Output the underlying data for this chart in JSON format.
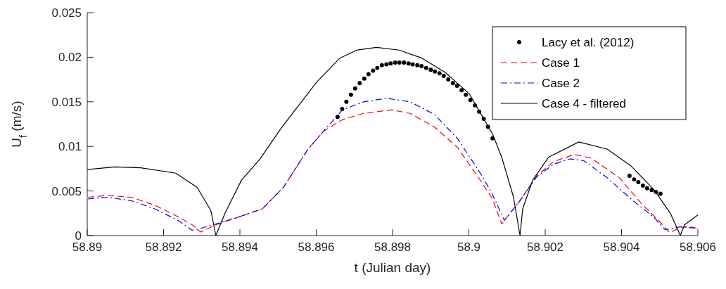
{
  "chart_data": {
    "type": "line",
    "xlabel": "t (Julian day)",
    "ylabel": "U$_{f}$ (m/s)",
    "xlim": [
      58.89,
      58.906
    ],
    "xticks": [
      58.89,
      58.892,
      58.894,
      58.896,
      58.898,
      58.9,
      58.902,
      58.904,
      58.906
    ],
    "ylim": [
      0,
      0.025
    ],
    "yticks": [
      0,
      0.005,
      0.01,
      0.015,
      0.02,
      0.025
    ],
    "grid": false,
    "legend": "top right",
    "series": [
      {
        "name": "Lacy et al. (2012)",
        "type": "scatter",
        "marker": "circle",
        "color": "#000000",
        "x": [
          58.89656,
          58.89668,
          58.89679,
          58.89691,
          58.89702,
          58.89714,
          58.89726,
          58.89737,
          58.89749,
          58.8976,
          58.89772,
          58.89784,
          58.89795,
          58.89807,
          58.89818,
          58.8983,
          58.89842,
          58.89853,
          58.89865,
          58.89876,
          58.89888,
          58.899,
          58.89911,
          58.89923,
          58.89934,
          58.89946,
          58.89958,
          58.89969,
          58.89981,
          58.89992,
          58.90004,
          58.90016,
          58.90027,
          58.90039,
          58.9005,
          58.90062,
          58.90421,
          58.90433,
          58.90444,
          58.90456,
          58.90467,
          58.90479,
          58.9049,
          58.90502
        ],
        "values": [
          0.0133,
          0.0142,
          0.015,
          0.0158,
          0.0165,
          0.0171,
          0.0176,
          0.0181,
          0.0185,
          0.0188,
          0.0191,
          0.0192,
          0.0193,
          0.0194,
          0.0194,
          0.0194,
          0.0193,
          0.0192,
          0.0191,
          0.019,
          0.0188,
          0.0186,
          0.0184,
          0.0182,
          0.0179,
          0.0175,
          0.0171,
          0.0168,
          0.0163,
          0.0158,
          0.0152,
          0.0146,
          0.0139,
          0.0131,
          0.0122,
          0.0109,
          0.0067,
          0.0063,
          0.006,
          0.0056,
          0.0053,
          0.0051,
          0.0049,
          0.0047
        ]
      },
      {
        "name": "Case 1",
        "color": "#ff0000",
        "line_style": "dashed",
        "x": [
          58.89002,
          58.89053,
          58.89116,
          58.89177,
          58.89238,
          58.89275,
          58.89297,
          58.89312,
          58.89337,
          58.89398,
          58.89459,
          58.89514,
          58.89577,
          58.89619,
          58.89669,
          58.89724,
          58.89798,
          58.89846,
          58.89909,
          58.8997,
          58.9003,
          58.90062,
          58.90086,
          58.90132,
          58.90178,
          58.90222,
          58.90277,
          58.9032,
          58.90394,
          58.90454,
          58.90504,
          58.90526,
          58.90554,
          58.90578,
          58.906
        ],
        "values": [
          0.0043,
          0.0045,
          0.0043,
          0.0034,
          0.0021,
          0.0012,
          0.0004,
          0.0007,
          0.0012,
          0.0021,
          0.003,
          0.0054,
          0.0096,
          0.0117,
          0.013,
          0.0137,
          0.0141,
          0.0137,
          0.0122,
          0.0099,
          0.0062,
          0.0041,
          0.0013,
          0.0038,
          0.0067,
          0.0083,
          0.0091,
          0.0087,
          0.0065,
          0.0035,
          0.0014,
          0.0003,
          0.0009,
          0.001,
          0.0008
        ]
      },
      {
        "name": "Case 2",
        "color": "#0000ff",
        "line_style": "dashdot",
        "x": [
          58.89002,
          58.89053,
          58.89116,
          58.89177,
          58.89238,
          58.89275,
          58.89288,
          58.89337,
          58.89398,
          58.89459,
          58.89514,
          58.89577,
          58.89619,
          58.89669,
          58.89724,
          58.89785,
          58.89846,
          58.89909,
          58.8997,
          58.9003,
          58.90062,
          58.90093,
          58.90132,
          58.90178,
          58.90222,
          58.90265,
          58.90301,
          58.90362,
          58.90425,
          58.90486,
          58.90513,
          58.90528,
          58.90554,
          58.906
        ],
        "values": [
          0.0041,
          0.0043,
          0.0039,
          0.003,
          0.0017,
          0.0006,
          0.0007,
          0.0013,
          0.0021,
          0.003,
          0.0054,
          0.0096,
          0.0117,
          0.0141,
          0.015,
          0.0154,
          0.015,
          0.0136,
          0.0109,
          0.007,
          0.0046,
          0.0017,
          0.0038,
          0.0066,
          0.008,
          0.0086,
          0.0084,
          0.0065,
          0.0041,
          0.002,
          0.0007,
          0.0007,
          0.001,
          0.0008
        ]
      },
      {
        "name": "Case 4 - filtered",
        "color": "#000000",
        "line_style": "solid",
        "x": [
          58.89,
          58.89072,
          58.8914,
          58.89232,
          58.89288,
          58.89324,
          58.89337,
          58.89361,
          58.89404,
          58.89453,
          58.89509,
          58.89601,
          58.89662,
          58.89706,
          58.89758,
          58.89817,
          58.89877,
          58.89938,
          58.90001,
          58.90062,
          58.90086,
          58.90117,
          58.90134,
          58.90141,
          58.90167,
          58.90209,
          58.90288,
          58.90362,
          58.90425,
          58.90486,
          58.90528,
          58.90554,
          58.90565,
          58.906
        ],
        "values": [
          0.0074,
          0.0077,
          0.0076,
          0.007,
          0.0054,
          0.0028,
          0,
          0.0025,
          0.0062,
          0.0086,
          0.0121,
          0.0172,
          0.0199,
          0.0208,
          0.0211,
          0.0208,
          0.0199,
          0.0183,
          0.0159,
          0.0114,
          0.0088,
          0.0043,
          0,
          0.003,
          0.0062,
          0.0088,
          0.0105,
          0.0097,
          0.0078,
          0.0051,
          0.0025,
          0,
          0.0012,
          0.0023
        ]
      }
    ]
  }
}
